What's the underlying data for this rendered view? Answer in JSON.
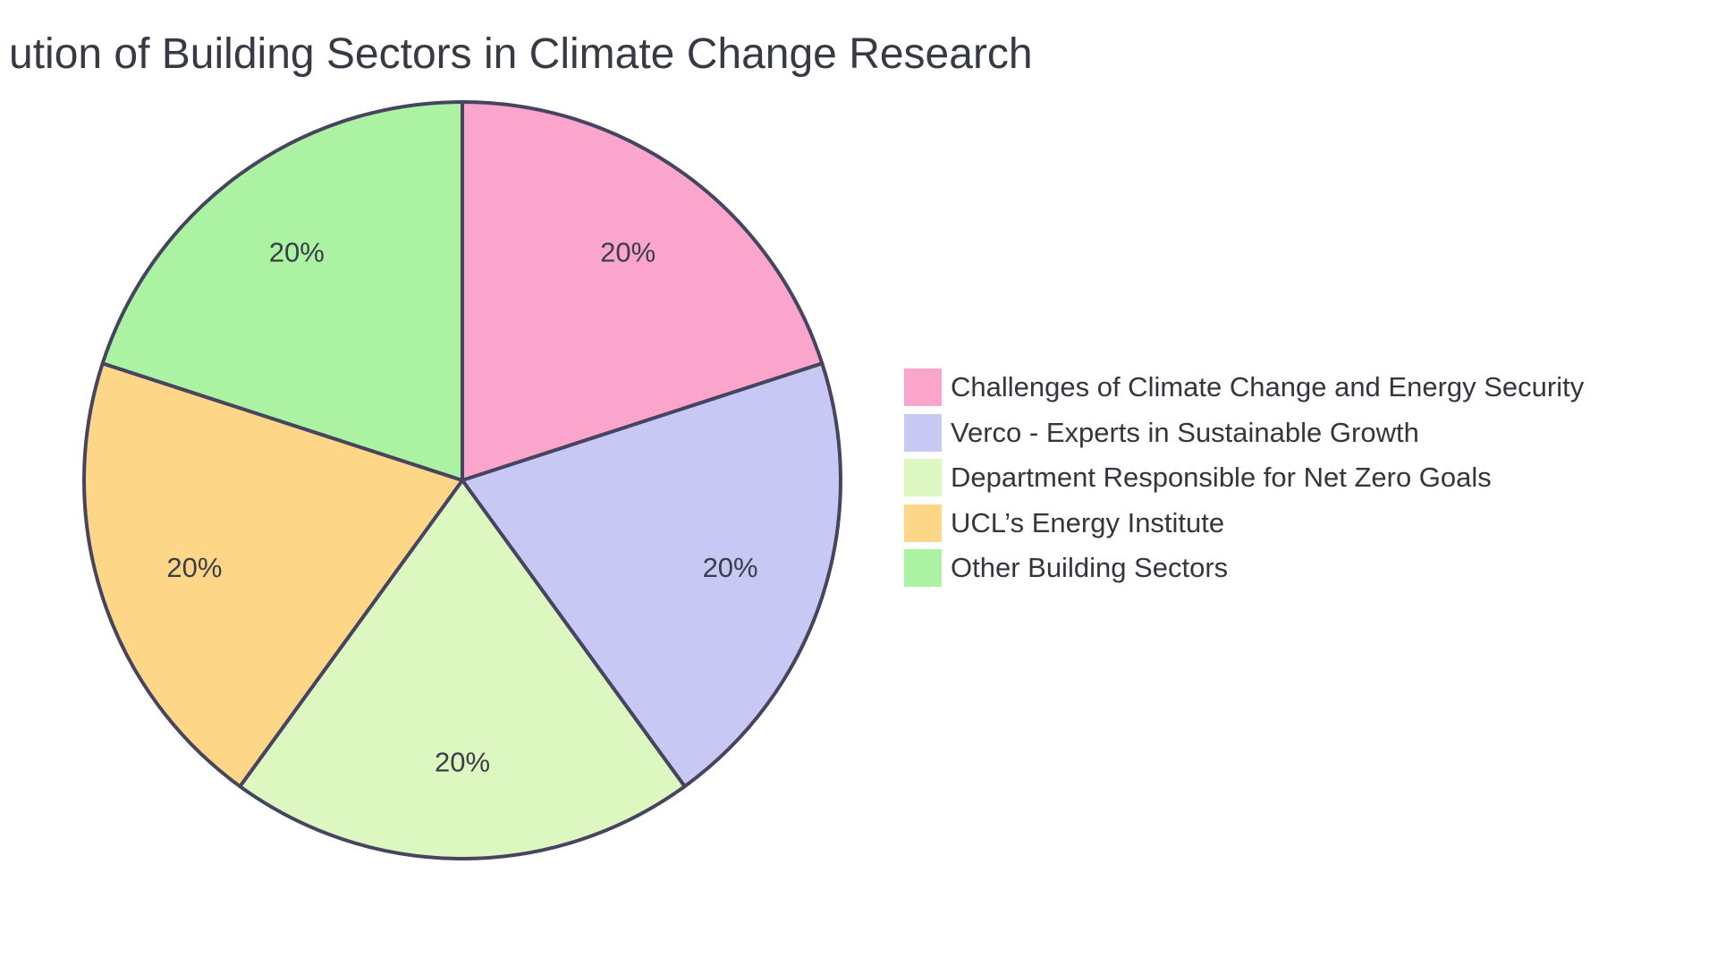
{
  "chart_data": {
    "type": "pie",
    "title": "ution of Building Sectors in Climate Change Research",
    "title_clipped_on_left": true,
    "start_angle": "top",
    "direction": "clockwise",
    "legend_position": "right",
    "stroke_color": "#46445f",
    "label_color": "#3b3d48",
    "title_color": "#363a43",
    "legend_text_color": "#33363c",
    "background_color": "#ffffff",
    "slices": [
      {
        "label": "Challenges of Climate Change and Energy Security",
        "value": 20,
        "pct_label": "20%",
        "color": "#fba5cd"
      },
      {
        "label": "Verco - Experts in Sustainable Growth",
        "value": 20,
        "pct_label": "20%",
        "color": "#c8c8f4"
      },
      {
        "label": "Department Responsible for Net Zero Goals",
        "value": 20,
        "pct_label": "20%",
        "color": "#dcf7c0"
      },
      {
        "label": "UCL’s Energy Institute",
        "value": 20,
        "pct_label": "20%",
        "color": "#fdd687"
      },
      {
        "label": "Other Building Sectors",
        "value": 20,
        "pct_label": "20%",
        "color": "#abf2a2"
      }
    ]
  }
}
